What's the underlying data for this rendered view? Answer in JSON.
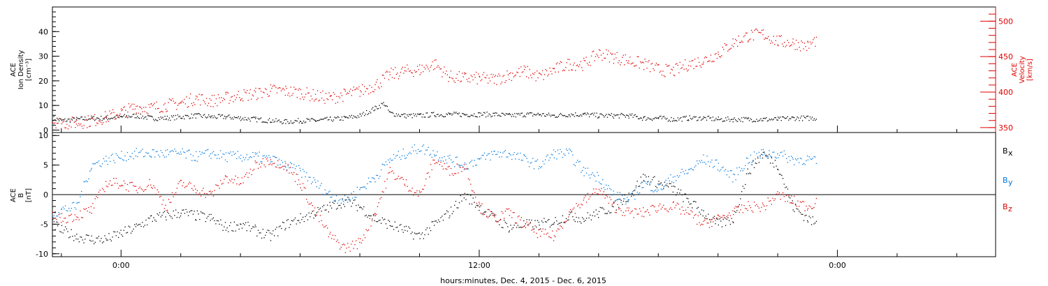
{
  "figure": {
    "xlabel": "hours:minutes, Dec.  4, 2015 - Dec.  6, 2015",
    "x_ticks": [
      "0:00",
      "12:00",
      "0:00"
    ]
  },
  "colors": {
    "black": "#000000",
    "red": "#e00000",
    "blue": "#0077dd"
  },
  "chart_data": [
    {
      "type": "scatter",
      "title": "",
      "panel": "plasma",
      "ylabel_left": [
        "ACE",
        "Ion Density",
        "[cm⁻³]"
      ],
      "ylabel_right": [
        "ACE",
        "Velocity",
        "[km/s]"
      ],
      "ylim_left": [
        -1,
        50
      ],
      "ylim_right": [
        343,
        520
      ],
      "yticks_left": [
        "0",
        "10",
        "20",
        "30",
        "40"
      ],
      "yticks_right": [
        "350",
        "400",
        "450",
        "500"
      ],
      "x_unit": "hours from Dec. 4, 2015 0:00",
      "xlim": [
        -2.3,
        29.3
      ],
      "series": [
        {
          "name": "Ion Density",
          "color": "#000000",
          "axis": "left",
          "x": [
            -2.3,
            -2.0,
            -1.5,
            -1.0,
            -0.5,
            0.0,
            0.5,
            1.0,
            1.5,
            2.0,
            2.5,
            3.0,
            3.5,
            4.0,
            4.5,
            5.0,
            5.5,
            6.0,
            6.5,
            7.0,
            7.5,
            8.0,
            8.5,
            8.8,
            9.0,
            9.5,
            10.0,
            10.5,
            11.0,
            11.5,
            12.0,
            12.5,
            13.0,
            13.5,
            14.0,
            14.5,
            15.0,
            15.5,
            16.0,
            16.5,
            17.0,
            17.5,
            18.0,
            18.5,
            19.0,
            19.5,
            20.0,
            20.5,
            21.0,
            21.5,
            22.0,
            22.5,
            23.0,
            23.3
          ],
          "y": [
            5,
            4,
            4.5,
            5,
            5,
            5.5,
            6,
            5,
            5,
            5.5,
            6,
            5.5,
            5.5,
            5,
            4.5,
            4,
            3.5,
            4,
            4,
            4.5,
            5,
            6,
            9,
            11,
            7,
            6,
            6,
            6.5,
            6.5,
            6.5,
            6.5,
            6.5,
            6,
            6.5,
            6.5,
            6,
            6.5,
            6.5,
            6,
            6,
            6,
            5,
            5,
            4.5,
            5,
            5,
            4.5,
            4.5,
            4.5,
            4.5,
            4.5,
            5,
            5,
            5
          ]
        },
        {
          "name": "Velocity",
          "color": "#e00000",
          "axis": "right",
          "x": [
            -2.3,
            -2.0,
            -1.5,
            -1.0,
            -0.5,
            0.0,
            0.5,
            1.0,
            1.5,
            2.0,
            2.5,
            3.0,
            3.5,
            4.0,
            4.5,
            5.0,
            5.5,
            6.0,
            6.5,
            7.0,
            7.5,
            8.0,
            8.5,
            9.0,
            9.5,
            10.0,
            10.5,
            11.0,
            11.5,
            12.0,
            12.5,
            13.0,
            13.5,
            14.0,
            14.5,
            15.0,
            15.5,
            16.0,
            16.5,
            17.0,
            17.5,
            18.0,
            18.5,
            19.0,
            19.5,
            20.0,
            20.5,
            21.0,
            21.5,
            22.0,
            22.5,
            23.0,
            23.3
          ],
          "y": [
            360,
            357,
            357,
            360,
            365,
            372,
            380,
            378,
            382,
            385,
            392,
            388,
            392,
            396,
            398,
            403,
            402,
            400,
            395,
            392,
            397,
            402,
            410,
            425,
            430,
            432,
            440,
            422,
            420,
            420,
            418,
            425,
            430,
            422,
            432,
            440,
            440,
            455,
            450,
            445,
            440,
            432,
            430,
            440,
            445,
            455,
            470,
            480,
            482,
            472,
            470,
            465,
            475
          ]
        }
      ]
    },
    {
      "type": "scatter",
      "title": "",
      "panel": "magnetic field",
      "ylabel_left": [
        "ACE",
        "B",
        "[nT]"
      ],
      "ylim": [
        -10.5,
        10.5
      ],
      "yticks": [
        "-10",
        "-5",
        "0",
        "5",
        "10"
      ],
      "zero_line": true,
      "x_unit": "hours from Dec. 4, 2015 0:00",
      "xlim": [
        -2.3,
        29.3
      ],
      "legend_placement": "right",
      "series": [
        {
          "name": "Bx",
          "label_main": "B",
          "label_sub": "x",
          "color": "#000000",
          "x": [
            -2.3,
            -2.0,
            -1.5,
            -1.0,
            -0.5,
            0.0,
            0.5,
            1.0,
            1.5,
            2.0,
            2.5,
            3.0,
            3.5,
            4.0,
            4.5,
            5.0,
            5.5,
            6.0,
            6.5,
            7.0,
            7.5,
            8.0,
            8.5,
            9.0,
            9.5,
            10.0,
            10.5,
            11.0,
            11.5,
            12.0,
            12.5,
            13.0,
            13.5,
            14.0,
            14.5,
            15.0,
            15.5,
            16.0,
            16.5,
            17.0,
            17.5,
            18.0,
            18.5,
            19.0,
            19.5,
            20.0,
            20.5,
            21.0,
            21.5,
            22.0,
            22.5,
            23.0,
            23.3
          ],
          "y": [
            -5,
            -6,
            -7,
            -7.5,
            -7.5,
            -6.5,
            -5.5,
            -4,
            -3.5,
            -3,
            -3.5,
            -4,
            -5.5,
            -5,
            -6,
            -7,
            -5,
            -4,
            -3,
            -2,
            -1,
            -2,
            -4,
            -5,
            -6,
            -7,
            -5,
            -3,
            0,
            -2,
            -4,
            -5.5,
            -5,
            -5,
            -4.5,
            -3.5,
            -4,
            -3,
            -2,
            0,
            3,
            2,
            1,
            -1,
            -3,
            -5,
            -4,
            4,
            7,
            5,
            -2,
            -4,
            -5
          ]
        },
        {
          "name": "By",
          "label_main": "B",
          "label_sub": "y",
          "color": "#0077dd",
          "x": [
            -2.3,
            -2.0,
            -1.5,
            -1.0,
            -0.5,
            0.0,
            0.5,
            1.0,
            1.5,
            2.0,
            2.5,
            3.0,
            3.5,
            4.0,
            4.5,
            5.0,
            5.5,
            6.0,
            6.5,
            7.0,
            7.5,
            8.0,
            8.5,
            9.0,
            9.5,
            10.0,
            10.5,
            11.0,
            11.5,
            12.0,
            12.5,
            13.0,
            13.5,
            14.0,
            14.5,
            15.0,
            15.5,
            16.0,
            16.5,
            17.0,
            17.5,
            18.0,
            18.5,
            19.0,
            19.5,
            20.0,
            20.5,
            21.0,
            21.5,
            22.0,
            22.5,
            23.0,
            23.3
          ],
          "y": [
            -3,
            -2.5,
            -2,
            5,
            6,
            6.5,
            7,
            7,
            7,
            7,
            6.5,
            7,
            6.5,
            6.5,
            6.5,
            6,
            5,
            4,
            2,
            0,
            -1,
            1,
            3,
            6,
            7,
            8,
            7,
            6,
            5,
            6,
            7,
            7,
            6,
            5,
            7,
            7,
            4,
            3,
            0,
            -1,
            2,
            1,
            3,
            4,
            6,
            5,
            3,
            6,
            7,
            7,
            6,
            6,
            5.5
          ]
        },
        {
          "name": "Bz",
          "label_main": "B",
          "label_sub": "z",
          "color": "#e00000",
          "x": [
            -2.3,
            -2.0,
            -1.5,
            -1.0,
            -0.5,
            0.0,
            0.5,
            1.0,
            1.5,
            2.0,
            2.5,
            3.0,
            3.5,
            4.0,
            4.5,
            5.0,
            5.5,
            6.0,
            6.5,
            7.0,
            7.5,
            8.0,
            8.5,
            9.0,
            9.5,
            10.0,
            10.5,
            11.0,
            11.5,
            12.0,
            12.5,
            13.0,
            13.5,
            14.0,
            14.5,
            15.0,
            15.5,
            16.0,
            16.5,
            17.0,
            17.5,
            18.0,
            18.5,
            19.0,
            19.5,
            20.0,
            20.5,
            21.0,
            21.5,
            22.0,
            22.5,
            23.0,
            23.3
          ],
          "y": [
            -3.5,
            -4,
            -3.5,
            -2.5,
            2,
            2,
            1,
            2,
            -2,
            2,
            1,
            0,
            3,
            2,
            5,
            6,
            5,
            2,
            -3,
            -7,
            -9,
            -8,
            -3,
            4,
            2,
            0,
            6,
            4,
            5,
            -2,
            -4,
            -3,
            -5,
            -6.5,
            -7,
            -3,
            -1,
            1,
            -2,
            -3,
            -3,
            -2,
            -2,
            -3,
            -5,
            -4,
            -3,
            -2,
            -2,
            0,
            -1,
            -2,
            -1
          ]
        }
      ]
    }
  ]
}
